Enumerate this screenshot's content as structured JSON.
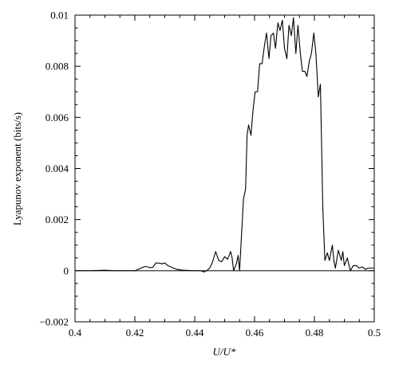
{
  "chart_data": {
    "type": "line",
    "title": "",
    "xlabel": "U/U*",
    "ylabel": "Lyapunov exponent (bits/s)",
    "xlim": [
      0.4,
      0.5
    ],
    "ylim": [
      -0.002,
      0.01
    ],
    "grid": false,
    "legend": "none",
    "x_ticks": [
      0.4,
      0.42,
      0.44,
      0.46,
      0.48,
      0.5
    ],
    "x_tick_labels": [
      "0.4",
      "0.42",
      "0.44",
      "0.46",
      "0.48",
      "0.5"
    ],
    "y_ticks": [
      -0.002,
      0,
      0.002,
      0.004,
      0.006,
      0.008,
      0.01
    ],
    "y_tick_labels": [
      "−0.002",
      "0",
      "0.002",
      "0.004",
      "0.006",
      "0.008",
      "0.01"
    ],
    "zero_line": true,
    "series": [
      {
        "color": "#000000",
        "x": [
          0.4,
          0.405,
          0.41,
          0.413,
          0.415,
          0.418,
          0.42,
          0.422,
          0.4235,
          0.425,
          0.426,
          0.427,
          0.428,
          0.429,
          0.43,
          0.431,
          0.432,
          0.434,
          0.436,
          0.438,
          0.44,
          0.442,
          0.443,
          0.444,
          0.445,
          0.446,
          0.447,
          0.448,
          0.449,
          0.45,
          0.451,
          0.452,
          0.4525,
          0.453,
          0.454,
          0.4545,
          0.455,
          0.4555,
          0.4563,
          0.457,
          0.4575,
          0.458,
          0.4588,
          0.4595,
          0.4602,
          0.461,
          0.4617,
          0.4625,
          0.4633,
          0.464,
          0.4648,
          0.4655,
          0.4663,
          0.467,
          0.4678,
          0.4685,
          0.4693,
          0.47,
          0.4708,
          0.4715,
          0.4723,
          0.473,
          0.4738,
          0.4745,
          0.4753,
          0.476,
          0.4768,
          0.4775,
          0.4783,
          0.479,
          0.4798,
          0.4805,
          0.4813,
          0.482,
          0.4828,
          0.4835,
          0.4843,
          0.485,
          0.4855,
          0.486,
          0.4865,
          0.487,
          0.488,
          0.489,
          0.4895,
          0.49,
          0.491,
          0.492,
          0.493,
          0.494,
          0.495,
          0.496,
          0.497,
          0.498,
          0.499,
          0.5
        ],
        "y": [
          0,
          0,
          2e-05,
          0,
          0,
          0,
          0,
          0.0001,
          0.00017,
          0.00012,
          0.00013,
          0.0003,
          0.0003,
          0.00027,
          0.0003,
          0.0002,
          0.00015,
          5e-05,
          2e-05,
          1e-05,
          0,
          0,
          -5e-05,
          0,
          0.0001,
          0.00035,
          0.00075,
          0.0004,
          0.00035,
          0.00055,
          0.00045,
          0.00075,
          0.0005,
          0,
          0.0003,
          0.0006,
          0,
          0.0011,
          0.0028,
          0.0032,
          0.0053,
          0.0057,
          0.0053,
          0.0063,
          0.007,
          0.007,
          0.0081,
          0.0081,
          0.0088,
          0.0093,
          0.0083,
          0.0092,
          0.0093,
          0.0087,
          0.0097,
          0.0094,
          0.0098,
          0.0087,
          0.0083,
          0.0096,
          0.0092,
          0.0099,
          0.0085,
          0.0096,
          0.0085,
          0.0078,
          0.0078,
          0.0076,
          0.0082,
          0.0085,
          0.0093,
          0.0085,
          0.0068,
          0.0073,
          0.0025,
          0.0004,
          0.0007,
          0.0004,
          0.0007,
          0.001,
          0.0004,
          0.0001,
          0.0008,
          0.0004,
          0.00075,
          0.0002,
          0.0005,
          0,
          0.0002,
          0.0002,
          0.0001,
          0.00015,
          5e-05,
          0.0001,
          0.0001,
          0.0001
        ]
      }
    ]
  }
}
